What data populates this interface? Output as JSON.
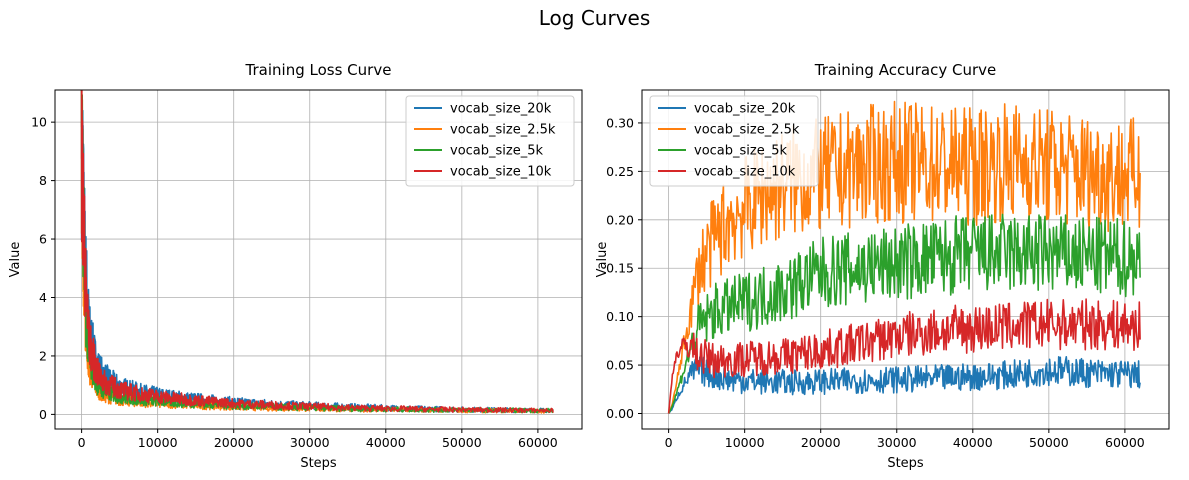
{
  "figure": {
    "title": "Log Curves"
  },
  "colors": {
    "vocab_size_20k": "#1f77b4",
    "vocab_size_2.5k": "#ff7f0e",
    "vocab_size_5k": "#2ca02c",
    "vocab_size_10k": "#d62728"
  },
  "chart_data": [
    {
      "type": "line",
      "title": "Training Loss Curve",
      "xlabel": "Steps",
      "ylabel": "Value",
      "xlim": [
        -3500,
        65800
      ],
      "ylim": [
        -0.5,
        11.1
      ],
      "xticks": [
        0,
        10000,
        20000,
        30000,
        40000,
        50000,
        60000
      ],
      "yticks": [
        0,
        2,
        4,
        6,
        8,
        10
      ],
      "grid": true,
      "legend": "top-right",
      "series": [
        {
          "name": "vocab_size_20k",
          "x": [
            0,
            200,
            500,
            1000,
            2000,
            3000,
            5000,
            8000,
            12000,
            16000,
            20000,
            25000,
            30000,
            35000,
            40000,
            45000,
            50000,
            55000,
            62000
          ],
          "y": [
            9.2,
            7.5,
            5.0,
            2.9,
            1.7,
            1.3,
            0.95,
            0.75,
            0.6,
            0.5,
            0.42,
            0.35,
            0.3,
            0.26,
            0.22,
            0.19,
            0.17,
            0.15,
            0.13
          ]
        },
        {
          "name": "vocab_size_2.5k",
          "x": [
            0,
            200,
            500,
            1000,
            2000,
            3000,
            5000,
            8000,
            12000,
            16000,
            20000,
            25000,
            30000,
            35000,
            40000,
            45000,
            50000,
            55000,
            62000
          ],
          "y": [
            9.5,
            6.0,
            3.2,
            1.6,
            0.9,
            0.65,
            0.5,
            0.42,
            0.36,
            0.3,
            0.26,
            0.22,
            0.2,
            0.18,
            0.16,
            0.15,
            0.14,
            0.13,
            0.12
          ]
        },
        {
          "name": "vocab_size_5k",
          "x": [
            0,
            200,
            500,
            1000,
            2000,
            3000,
            5000,
            8000,
            12000,
            16000,
            20000,
            25000,
            30000,
            35000,
            40000,
            45000,
            50000,
            55000,
            62000
          ],
          "y": [
            10.5,
            7.0,
            3.8,
            2.0,
            1.1,
            0.8,
            0.6,
            0.5,
            0.42,
            0.36,
            0.3,
            0.26,
            0.22,
            0.2,
            0.18,
            0.16,
            0.15,
            0.14,
            0.13
          ]
        },
        {
          "name": "vocab_size_10k",
          "x": [
            0,
            200,
            500,
            1000,
            2000,
            3000,
            5000,
            8000,
            12000,
            16000,
            20000,
            25000,
            30000,
            35000,
            40000,
            45000,
            50000,
            55000,
            62000
          ],
          "y": [
            9.3,
            7.2,
            4.5,
            2.5,
            1.45,
            1.1,
            0.85,
            0.68,
            0.55,
            0.46,
            0.38,
            0.32,
            0.27,
            0.23,
            0.2,
            0.18,
            0.16,
            0.15,
            0.13
          ]
        }
      ]
    },
    {
      "type": "line",
      "title": "Training Accuracy Curve",
      "xlabel": "Steps",
      "ylabel": "Value",
      "xlim": [
        -3500,
        65800
      ],
      "ylim": [
        -0.016,
        0.334
      ],
      "xticks": [
        0,
        10000,
        20000,
        30000,
        40000,
        50000,
        60000
      ],
      "yticks": [
        0.0,
        0.05,
        0.1,
        0.15,
        0.2,
        0.25,
        0.3
      ],
      "grid": true,
      "legend": "top-left",
      "series": [
        {
          "name": "vocab_size_20k",
          "x": [
            0,
            500,
            1000,
            2000,
            3000,
            4000,
            6000,
            8000,
            12000,
            16000,
            20000,
            25000,
            30000,
            35000,
            40000,
            45000,
            50000,
            55000,
            62000
          ],
          "y": [
            0.0,
            0.005,
            0.015,
            0.03,
            0.042,
            0.045,
            0.04,
            0.035,
            0.033,
            0.032,
            0.033,
            0.034,
            0.035,
            0.036,
            0.038,
            0.04,
            0.045,
            0.042,
            0.04
          ]
        },
        {
          "name": "vocab_size_2.5k",
          "x": [
            0,
            500,
            1000,
            2000,
            3000,
            4000,
            6000,
            8000,
            12000,
            16000,
            20000,
            25000,
            30000,
            35000,
            40000,
            45000,
            50000,
            55000,
            62000
          ],
          "y": [
            0.0,
            0.01,
            0.03,
            0.07,
            0.11,
            0.15,
            0.18,
            0.2,
            0.225,
            0.24,
            0.245,
            0.255,
            0.26,
            0.258,
            0.255,
            0.26,
            0.255,
            0.25,
            0.245
          ]
        },
        {
          "name": "vocab_size_5k",
          "x": [
            0,
            500,
            1000,
            2000,
            3000,
            4000,
            6000,
            8000,
            12000,
            16000,
            20000,
            25000,
            30000,
            35000,
            40000,
            45000,
            50000,
            55000,
            62000
          ],
          "y": [
            0.0,
            0.008,
            0.02,
            0.045,
            0.07,
            0.09,
            0.105,
            0.11,
            0.12,
            0.13,
            0.145,
            0.15,
            0.155,
            0.16,
            0.165,
            0.165,
            0.165,
            0.162,
            0.16
          ]
        },
        {
          "name": "vocab_size_10k",
          "x": [
            0,
            500,
            1000,
            2000,
            3000,
            4000,
            6000,
            8000,
            12000,
            16000,
            20000,
            25000,
            30000,
            35000,
            40000,
            45000,
            50000,
            55000,
            62000
          ],
          "y": [
            0.0,
            0.04,
            0.06,
            0.07,
            0.07,
            0.06,
            0.055,
            0.055,
            0.058,
            0.06,
            0.065,
            0.072,
            0.08,
            0.085,
            0.088,
            0.09,
            0.092,
            0.092,
            0.09
          ]
        }
      ]
    }
  ]
}
